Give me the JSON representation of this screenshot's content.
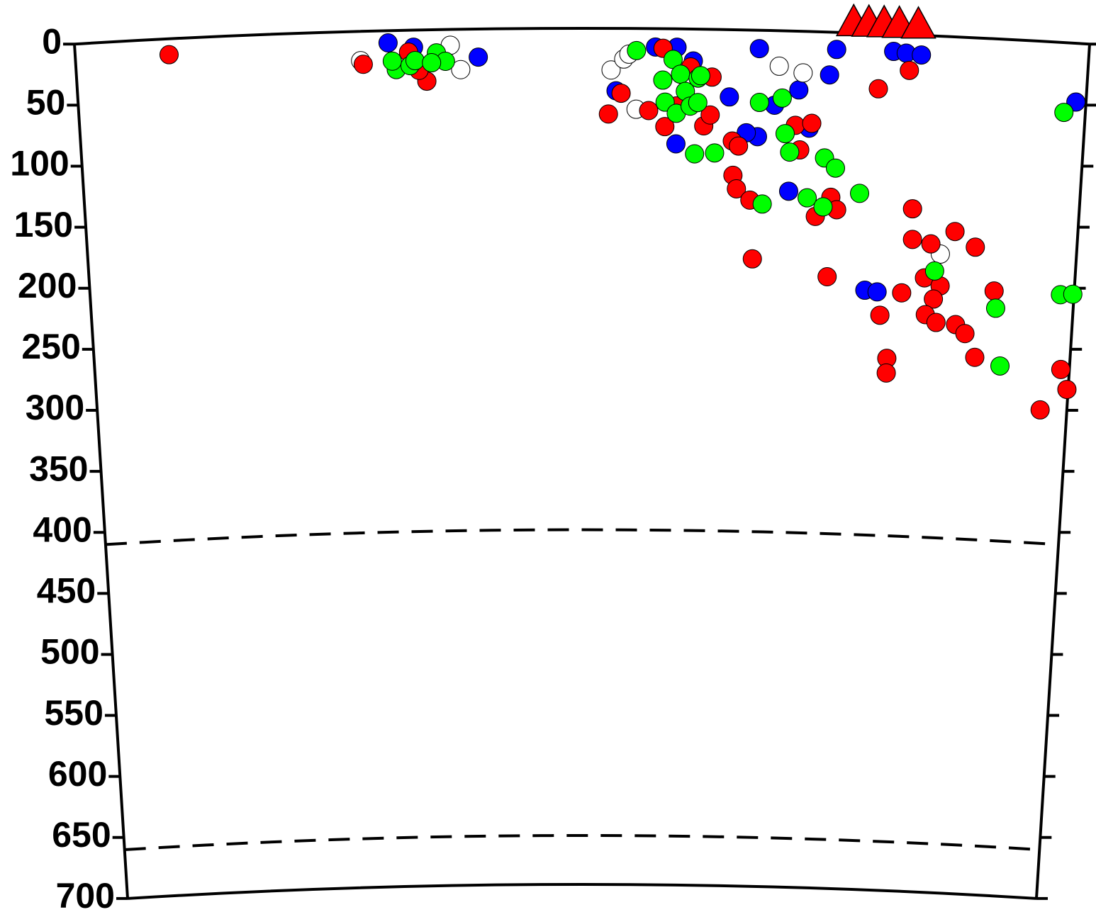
{
  "chart_data": {
    "type": "scatter",
    "invert_y": true,
    "xlim": [
      0,
      800
    ],
    "ylim": [
      0,
      700
    ],
    "yticks": [
      0,
      50,
      100,
      150,
      200,
      250,
      300,
      350,
      400,
      450,
      500,
      550,
      600,
      650,
      700
    ],
    "reference_depths": [
      410,
      660
    ],
    "volcanoes": {
      "color": "#ff0000",
      "x": [
        614,
        626,
        638,
        650,
        665
      ]
    },
    "series": [
      {
        "color": "#0000ff",
        "x": [
          247,
          267,
          318,
          427,
          458,
          475,
          488,
          475,
          517,
          540,
          540,
          531,
          553,
          572,
          581,
          566,
          601,
          596,
          646,
          656,
          668,
          630,
          640,
          792
        ],
        "values": [
          10,
          14,
          23,
          51,
          15,
          15,
          26,
          94,
          55,
          15,
          87,
          84,
          61,
          48,
          79,
          131,
          14,
          35,
          14,
          15,
          16,
          210,
          211,
          48
        ]
      },
      {
        "color": "#ffffff",
        "x": [
          225,
          296,
          304,
          423,
          433,
          437,
          443,
          556,
          575,
          690
        ],
        "values": [
          24,
          13,
          33,
          34,
          25,
          21,
          66,
          29,
          34,
          178
        ]
      },
      {
        "color": "#ff0000",
        "x": [
          74,
          227,
          263,
          277,
          271,
          421,
          431,
          453,
          464,
          466,
          475,
          486,
          497,
          503,
          502,
          520,
          525,
          521,
          524,
          535,
          538,
          570,
          574,
          583,
          588,
          599,
          600,
          605,
          635,
          659,
          666,
          667,
          682,
          678,
          660,
          643,
          691,
          686,
          680,
          689,
          701,
          718,
          735,
          705,
          713,
          722,
          650,
          650,
          778,
          793,
          799
        ],
        "values": [
          13,
          27,
          18,
          42,
          33,
          70,
          53,
          67,
          16,
          80,
          63,
          31,
          79,
          39,
          70,
          91,
          95,
          119,
          130,
          139,
          187,
          77,
          97,
          75,
          151,
          200,
          135,
          145,
          45,
          29,
          142,
          167,
          170,
          198,
          211,
          230,
          204,
          215,
          228,
          234,
          159,
          171,
          206,
          235,
          242,
          261,
          265,
          277,
          301,
          267,
          283
        ]
      },
      {
        "color": "#00ff00",
        "x": [
          253,
          250,
          264,
          268,
          285,
          292,
          281,
          443,
          464,
          472,
          478,
          482,
          492,
          466,
          475,
          486,
          492,
          494,
          490,
          506,
          541,
          559,
          562,
          566,
          594,
          603,
          581,
          594,
          623,
          545,
          686,
          737,
          743,
          783,
          789,
          799
        ],
        "values": [
          32,
          25,
          29,
          25,
          19,
          26,
          27,
          18,
          42,
          25,
          37,
          51,
          40,
          60,
          69,
          63,
          60,
          38,
          102,
          101,
          59,
          55,
          84,
          99,
          103,
          111,
          136,
          143,
          131,
          142,
          192,
          220,
          267,
          57,
          206,
          205
        ]
      }
    ]
  }
}
